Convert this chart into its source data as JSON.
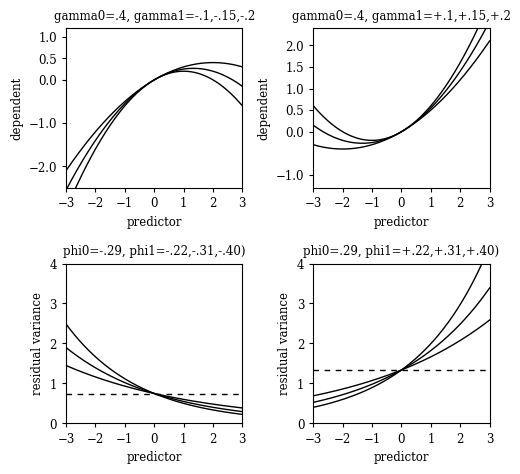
{
  "top_left": {
    "title": "gamma0=.4, gamma1=-.1,-.15,-.2",
    "gamma0": 0.4,
    "gamma1_values": [
      -0.1,
      -0.15,
      -0.2
    ],
    "xlabel": "predictor",
    "ylabel": "dependent",
    "xlim": [
      -3,
      3
    ],
    "ylim": [
      -2.5,
      1.2
    ],
    "yticks": [
      -2.0,
      -1.0,
      0.0,
      0.5,
      1.0
    ]
  },
  "top_right": {
    "title": "gamma0=.4, gamma1=+.1,+.15,+.2",
    "gamma0": 0.4,
    "gamma1_values": [
      0.1,
      0.15,
      0.2
    ],
    "xlabel": "predictor",
    "ylabel": "dependent",
    "xlim": [
      -3,
      3
    ],
    "ylim": [
      -1.3,
      2.4
    ],
    "yticks": [
      -1.0,
      0.0,
      0.5,
      1.0,
      1.5,
      2.0
    ]
  },
  "bottom_left": {
    "title": "phi0=-.29, phi1=-.22,-.31,-.40)",
    "phi0": -0.29,
    "phi1_values": [
      -0.22,
      -0.31,
      -0.4
    ],
    "xlabel": "predictor",
    "ylabel": "residual variance",
    "xlim": [
      -3,
      3
    ],
    "ylim": [
      0,
      4
    ],
    "yticks": [
      0,
      1,
      2,
      3,
      4
    ],
    "dashed_line": 0.748
  },
  "bottom_right": {
    "title": "phi0=.29, phi1=+.22,+.31,+.40)",
    "phi0": 0.29,
    "phi1_values": [
      0.22,
      0.31,
      0.4
    ],
    "xlabel": "predictor",
    "ylabel": "residual variance",
    "xlim": [
      -3,
      3
    ],
    "ylim": [
      0,
      4
    ],
    "yticks": [
      0,
      1,
      2,
      3,
      4
    ],
    "dashed_line": 1.336
  },
  "line_color": "#000000",
  "background_color": "#ffffff",
  "line_width": 1.0,
  "font_size": 8.5,
  "title_font_size": 8.5
}
